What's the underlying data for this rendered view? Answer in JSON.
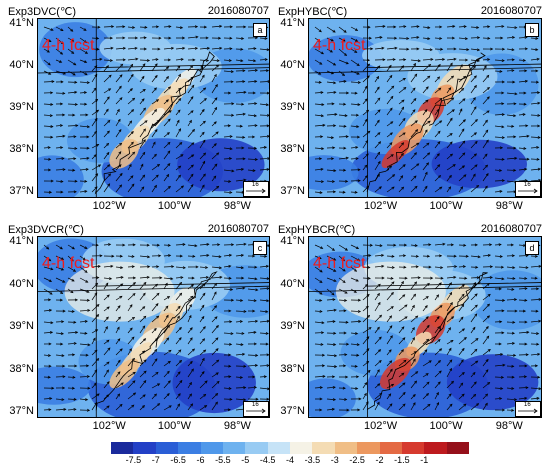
{
  "panels": [
    {
      "title": "Exp3DVC(℃)",
      "date": "2016080707",
      "tag": "a",
      "fcst": "4-h fcst",
      "ref": "16"
    },
    {
      "title": "ExpHYBC(℃)",
      "date": "2016080707",
      "tag": "b",
      "fcst": "4-h fcst",
      "ref": "16"
    },
    {
      "title": "Exp3DVCR(℃)",
      "date": "2016080707",
      "tag": "c",
      "fcst": "4-h fcst",
      "ref": "16"
    },
    {
      "title": "ExpHYBCR(℃)",
      "date": "2016080707",
      "tag": "d",
      "fcst": "4-h fcst",
      "ref": "16"
    }
  ],
  "lat_labels": [
    "41°N",
    "40°N",
    "39°N",
    "38°N",
    "37°N"
  ],
  "lon_labels": [
    "102°W",
    "100°W",
    "98°W"
  ],
  "colorbar": {
    "labels": [
      "-7.5",
      "-7",
      "-6.5",
      "-6",
      "-5.5",
      "-5",
      "-4.5",
      "-4",
      "-3.5",
      "-3",
      "-2.5",
      "-2",
      "-1.5",
      "-1"
    ],
    "colors": [
      "#1a2a9c",
      "#2340c6",
      "#2a5ed6",
      "#3b7ee3",
      "#4f98ea",
      "#6eb2ef",
      "#98cbf3",
      "#c6e3f7",
      "#f5f2e6",
      "#f4dcb4",
      "#f0be86",
      "#ec985f",
      "#e46a44",
      "#d63a2e",
      "#bd1a1e",
      "#95101a"
    ]
  }
}
